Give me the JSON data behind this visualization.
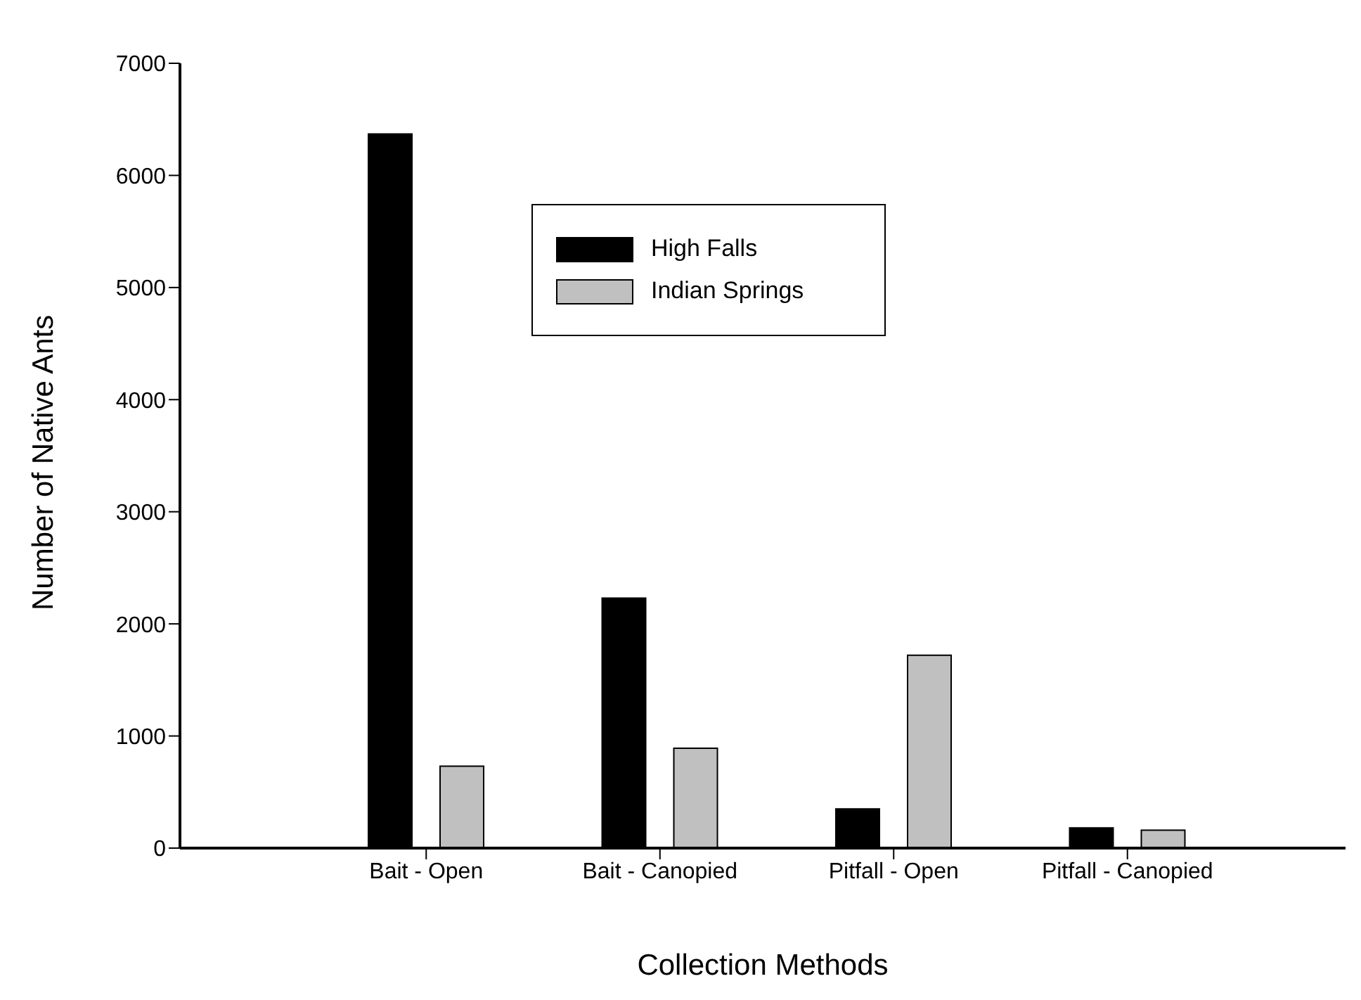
{
  "chart_data": {
    "type": "bar",
    "xlabel": "Collection Methods",
    "ylabel": "Number of Native Ants",
    "categories": [
      "Bait - Open",
      "Bait - Canopied",
      "Pitfall - Open",
      "Pitfall - Canopied"
    ],
    "series": [
      {
        "name": "High Falls",
        "color": "#000000",
        "values": [
          6370,
          2230,
          350,
          180
        ]
      },
      {
        "name": "Indian Springs",
        "color": "#c0c0c0",
        "values": [
          730,
          890,
          1720,
          160
        ]
      }
    ],
    "ylim": [
      0,
      7000
    ],
    "yticks": [
      0,
      1000,
      2000,
      3000,
      4000,
      5000,
      6000,
      7000
    ],
    "grid": false,
    "legend": "top"
  }
}
